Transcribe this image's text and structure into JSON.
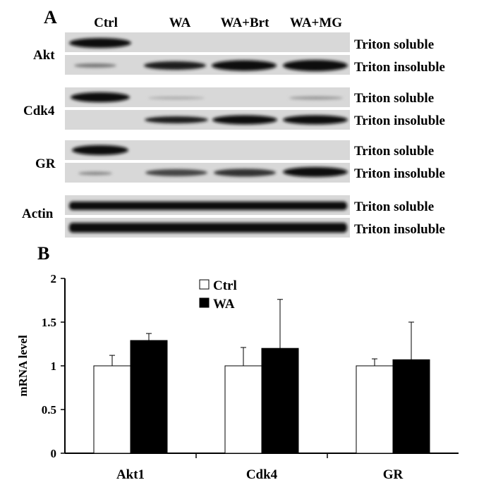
{
  "panel_a": {
    "letter": "A",
    "lanes": [
      "Ctrl",
      "WA",
      "WA+Brt",
      "WA+MG"
    ],
    "rows": [
      {
        "protein": "Akt",
        "fractions": [
          "Triton soluble",
          "Triton insoluble"
        ]
      },
      {
        "protein": "Cdk4",
        "fractions": [
          "Triton soluble",
          "Triton insoluble"
        ]
      },
      {
        "protein": "GR",
        "fractions": [
          "Triton soluble",
          "Triton insoluble"
        ]
      },
      {
        "protein": "Actin",
        "fractions": [
          "Triton soluble",
          "Triton insoluble"
        ]
      }
    ]
  },
  "panel_b": {
    "letter": "B"
  },
  "chart_data": {
    "type": "bar",
    "categories": [
      "Akt1",
      "Cdk4",
      "GR"
    ],
    "series": [
      {
        "name": "Ctrl",
        "color": "#ffffff",
        "values": [
          1.0,
          1.0,
          1.0
        ],
        "errors": [
          0.12,
          0.21,
          0.08
        ]
      },
      {
        "name": "WA",
        "color": "#000000",
        "values": [
          1.29,
          1.2,
          1.07
        ],
        "errors": [
          0.08,
          0.56,
          0.43
        ]
      }
    ],
    "ylabel": "mRNA level",
    "ylim": [
      0,
      2
    ],
    "yticks": [
      "0",
      "0.5",
      "1",
      "1.5",
      "2"
    ],
    "grid": false,
    "legend": "top-center"
  }
}
